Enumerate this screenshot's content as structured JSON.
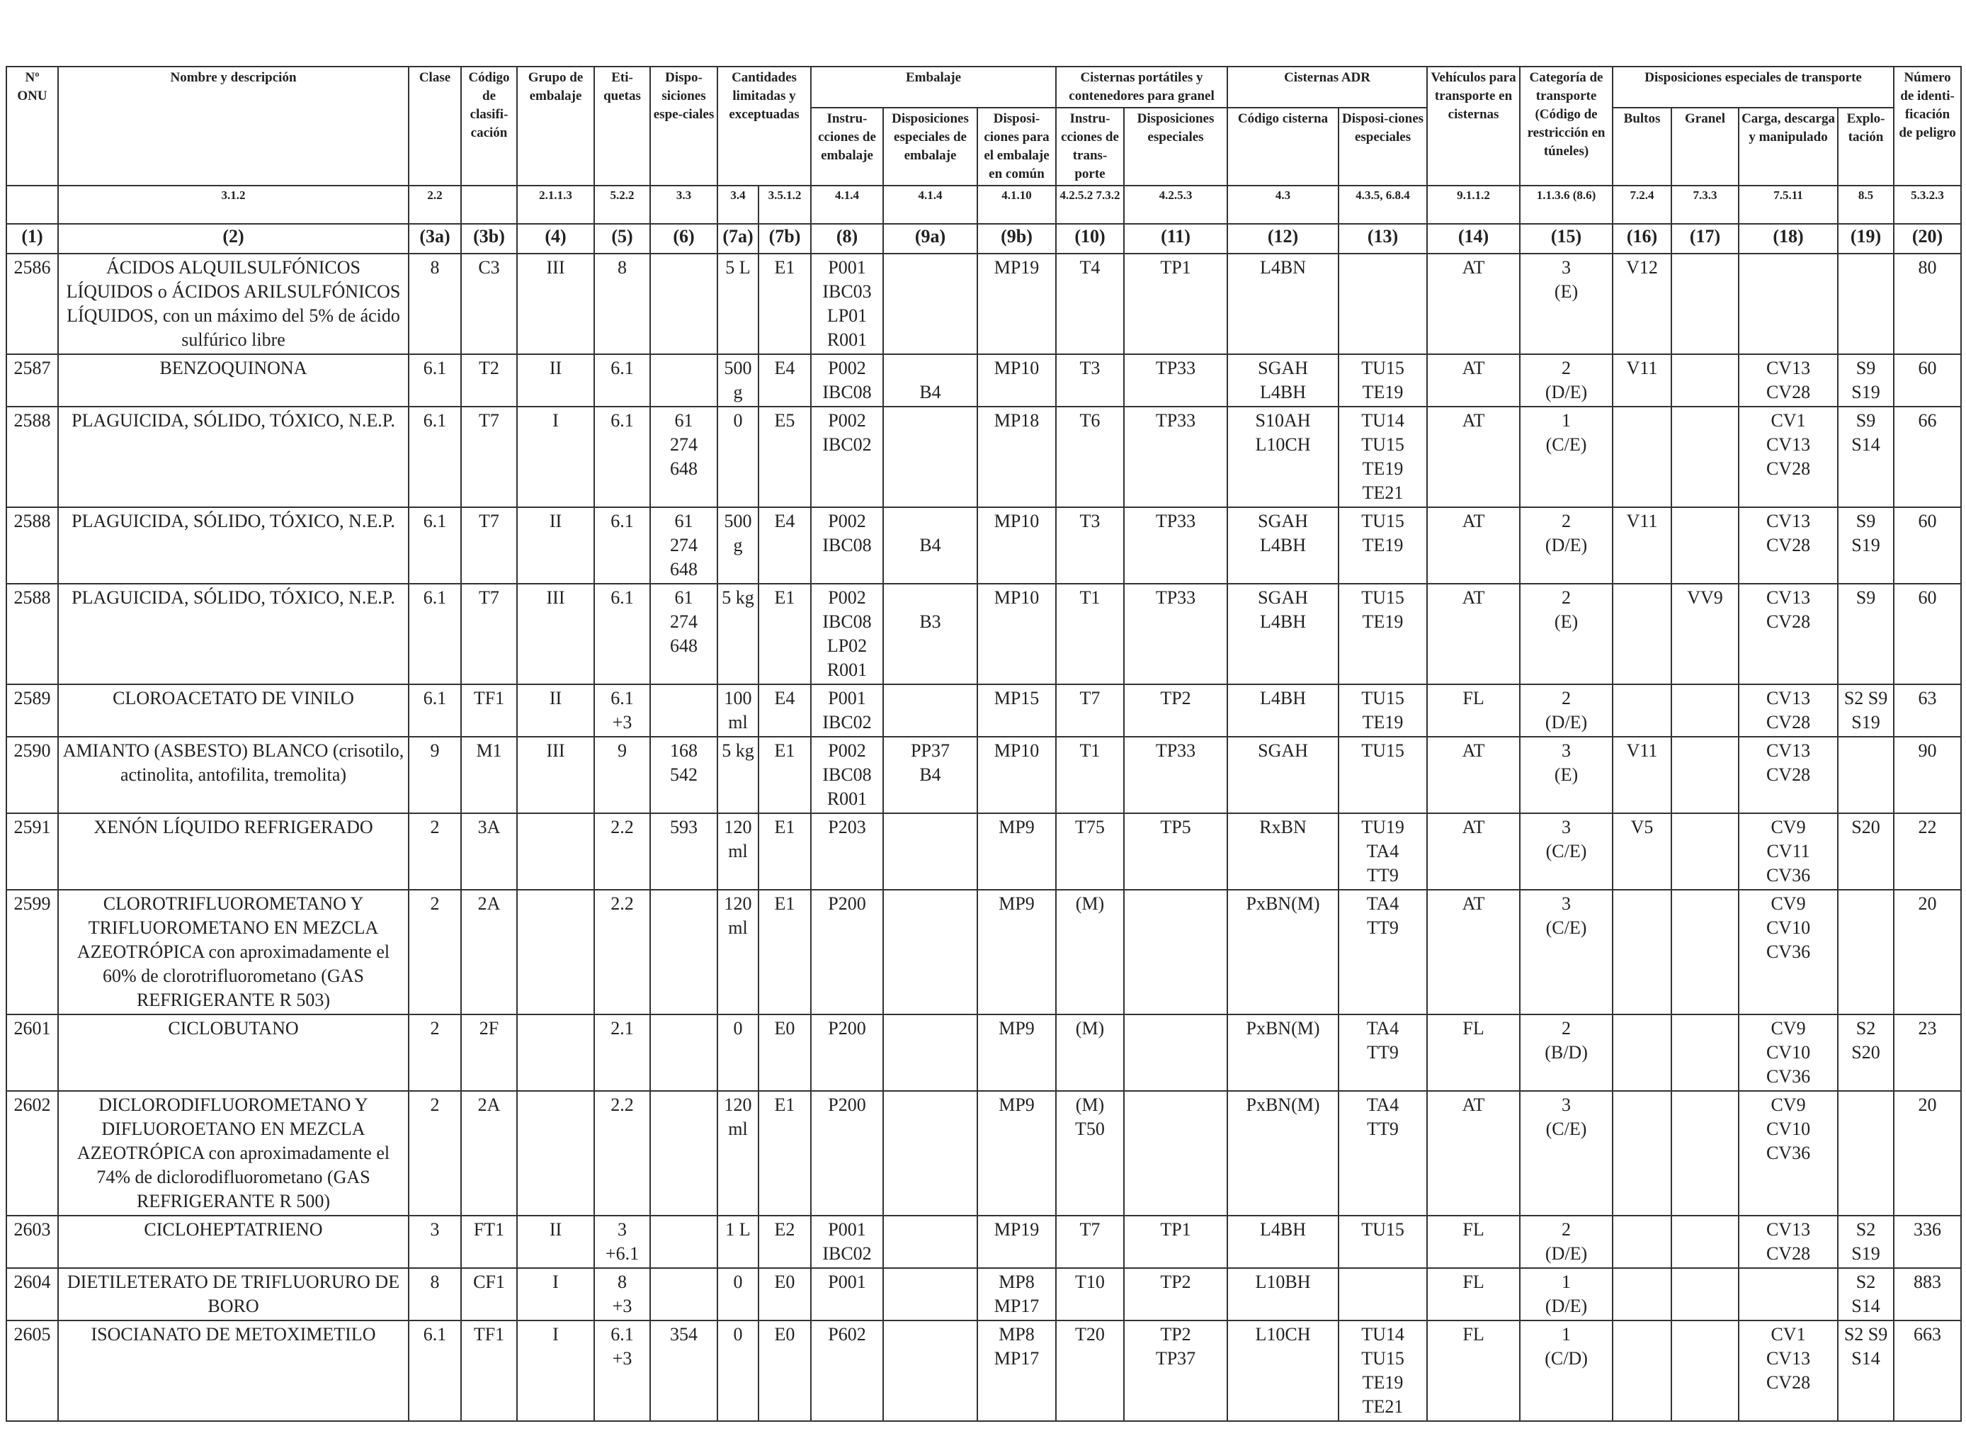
{
  "headers": {
    "un_no": "Nº ONU",
    "name": "Nombre y descripción",
    "class": "Clase",
    "class_code": "Código de clasifi-cación",
    "packing_group": "Grupo de embalaje",
    "labels": "Eti-quetas",
    "special_provisions": "Dispo-siciones espe-ciales",
    "limited_qty": "Cantidades limitadas y exceptuadas",
    "packaging": "Embalaje",
    "pack_instr": "Instru-cciones de embalaje",
    "pack_special": "Disposiciones especiales de embalaje",
    "mixed_packing": "Disposi-ciones para el embalaje en común",
    "portable_tanks": "Cisternas portátiles y contenedores para granel",
    "pt_instr": "Instru-cciones de trans-porte",
    "pt_special": "Disposiciones especiales",
    "adr_tanks": "Cisternas ADR",
    "tank_code": "Código cisterna",
    "tank_special": "Disposi-ciones especiales",
    "vehicle": "Vehículos para transporte en cisternas",
    "transport_cat": "Categoría de transporte (Código de restricción en túneles)",
    "special_transport": "Disposiciones especiales de transporte",
    "packages": "Bultos",
    "bulk": "Granel",
    "loading": "Carga, descarga y manipulado",
    "operation": "Explo-tación",
    "hazard_id": "Número de identi-ficación de peligro"
  },
  "refs": [
    "",
    "3.1.2",
    "2.2",
    "",
    "2.1.1.3",
    "5.2.2",
    "3.3",
    "3.4",
    "3.5.1.2",
    "4.1.4",
    "4.1.4",
    "4.1.10",
    "4.2.5.2 7.3.2",
    "4.2.5.3",
    "4.3",
    "4.3.5, 6.8.4",
    "9.1.1.2",
    "1.1.3.6 (8.6)",
    "7.2.4",
    "7.3.3",
    "7.5.11",
    "8.5",
    "5.3.2.3"
  ],
  "col_numbers": [
    "(1)",
    "(2)",
    "(3a)",
    "(3b)",
    "(4)",
    "(5)",
    "(6)",
    "(7a)",
    "(7b)",
    "(8)",
    "(9a)",
    "(9b)",
    "(10)",
    "(11)",
    "(12)",
    "(13)",
    "(14)",
    "(15)",
    "(16)",
    "(17)",
    "(18)",
    "(19)",
    "(20)"
  ],
  "rows": [
    [
      "2586",
      "ÁCIDOS ALQUILSULFÓNICOS LÍQUIDOS o ÁCIDOS ARILSULFÓNICOS LÍQUIDOS, con un máximo del 5% de ácido sulfúrico libre",
      "8",
      "C3",
      "III",
      "8",
      "",
      "5 L",
      "E1",
      "P001\nIBC03\nLP01\nR001",
      "",
      "MP19",
      "T4",
      "TP1",
      "L4BN",
      "",
      "AT",
      "3\n(E)",
      "V12",
      "",
      "",
      "",
      "80"
    ],
    [
      "2587",
      "BENZOQUINONA",
      "6.1",
      "T2",
      "II",
      "6.1",
      "",
      "500 g",
      "E4",
      "P002\nIBC08",
      "\nB4",
      "MP10",
      "T3",
      "TP33",
      "SGAH\nL4BH",
      "TU15\nTE19",
      "AT",
      "2\n(D/E)",
      "V11",
      "",
      "CV13\nCV28",
      "S9\nS19",
      "60"
    ],
    [
      "2588",
      "PLAGUICIDA, SÓLIDO, TÓXICO, N.E.P.",
      "6.1",
      "T7",
      "I",
      "6.1",
      "61\n274\n648",
      "0",
      "E5",
      "P002\nIBC02",
      "",
      "MP18",
      "T6",
      "TP33",
      "S10AH\nL10CH",
      "TU14\nTU15\nTE19\nTE21",
      "AT",
      "1\n(C/E)",
      "",
      "",
      "CV1\nCV13\nCV28",
      "S9\nS14",
      "66"
    ],
    [
      "2588",
      "PLAGUICIDA, SÓLIDO, TÓXICO, N.E.P.",
      "6.1",
      "T7",
      "II",
      "6.1",
      "61\n274\n648",
      "500 g",
      "E4",
      "P002\nIBC08",
      "\nB4",
      "MP10",
      "T3",
      "TP33",
      "SGAH\nL4BH",
      "TU15\nTE19",
      "AT",
      "2\n(D/E)",
      "V11",
      "",
      "CV13\nCV28",
      "S9\nS19",
      "60"
    ],
    [
      "2588",
      "PLAGUICIDA, SÓLIDO, TÓXICO, N.E.P.",
      "6.1",
      "T7",
      "III",
      "6.1",
      "61\n274\n648",
      "5 kg",
      "E1",
      "P002\nIBC08\nLP02\nR001",
      "\nB3",
      "MP10",
      "T1",
      "TP33",
      "SGAH\nL4BH",
      "TU15\nTE19",
      "AT",
      "2\n(E)",
      "",
      "VV9",
      "CV13\nCV28",
      "S9",
      "60"
    ],
    [
      "2589",
      "CLOROACETATO DE VINILO",
      "6.1",
      "TF1",
      "II",
      "6.1\n+3",
      "",
      "100 ml",
      "E4",
      "P001\nIBC02",
      "",
      "MP15",
      "T7",
      "TP2",
      "L4BH",
      "TU15\nTE19",
      "FL",
      "2\n(D/E)",
      "",
      "",
      "CV13\nCV28",
      "S2 S9\nS19",
      "63"
    ],
    [
      "2590",
      "AMIANTO (ASBESTO) BLANCO (crisotilo, actinolita, antofilita, tremolita)",
      "9",
      "M1",
      "III",
      "9",
      "168\n542",
      "5 kg",
      "E1",
      "P002\nIBC08\nR001",
      "PP37\nB4",
      "MP10",
      "T1",
      "TP33",
      "SGAH",
      "TU15",
      "AT",
      "3\n(E)",
      "V11",
      "",
      "CV13\nCV28",
      "",
      "90"
    ],
    [
      "2591",
      "XENÓN LÍQUIDO REFRIGERADO",
      "2",
      "3A",
      "",
      "2.2",
      "593",
      "120 ml",
      "E1",
      "P203",
      "",
      "MP9",
      "T75",
      "TP5",
      "RxBN",
      "TU19\nTA4\nTT9",
      "AT",
      "3\n(C/E)",
      "V5",
      "",
      "CV9\nCV11\nCV36",
      "S20",
      "22"
    ],
    [
      "2599",
      "CLOROTRIFLUOROMETANO Y TRIFLUOROMETANO EN MEZCLA AZEOTRÓPICA con aproximadamente el 60% de clorotrifluorometano (GAS REFRIGERANTE R 503)",
      "2",
      "2A",
      "",
      "2.2",
      "",
      "120 ml",
      "E1",
      "P200",
      "",
      "MP9",
      "(M)",
      "",
      "PxBN(M)",
      "TA4\nTT9",
      "AT",
      "3\n(C/E)",
      "",
      "",
      "CV9\nCV10\nCV36",
      "",
      "20"
    ],
    [
      "2601",
      "CICLOBUTANO",
      "2",
      "2F",
      "",
      "2.1",
      "",
      "0",
      "E0",
      "P200",
      "",
      "MP9",
      "(M)",
      "",
      "PxBN(M)",
      "TA4\nTT9",
      "FL",
      "2\n(B/D)",
      "",
      "",
      "CV9\nCV10\nCV36",
      "S2\nS20",
      "23"
    ],
    [
      "2602",
      "DICLORODIFLUOROMETANO Y DIFLUOROETANO EN MEZCLA AZEOTRÓPICA con aproximadamente el 74% de diclorodifluorometano (GAS REFRIGERANTE R 500)",
      "2",
      "2A",
      "",
      "2.2",
      "",
      "120 ml",
      "E1",
      "P200",
      "",
      "MP9",
      "(M)\nT50",
      "",
      "PxBN(M)",
      "TA4\nTT9",
      "AT",
      "3\n(C/E)",
      "",
      "",
      "CV9\nCV10\nCV36",
      "",
      "20"
    ],
    [
      "2603",
      "CICLOHEPTATRIENO",
      "3",
      "FT1",
      "II",
      "3\n+6.1",
      "",
      "1 L",
      "E2",
      "P001\nIBC02",
      "",
      "MP19",
      "T7",
      "TP1",
      "L4BH",
      "TU15",
      "FL",
      "2\n(D/E)",
      "",
      "",
      "CV13\nCV28",
      "S2\nS19",
      "336"
    ],
    [
      "2604",
      "DIETILETERATO DE TRIFLUORURO DE BORO",
      "8",
      "CF1",
      "I",
      "8\n+3",
      "",
      "0",
      "E0",
      "P001",
      "",
      "MP8\nMP17",
      "T10",
      "TP2",
      "L10BH",
      "",
      "FL",
      "1\n(D/E)",
      "",
      "",
      "",
      "S2\nS14",
      "883"
    ],
    [
      "2605",
      "ISOCIANATO DE METOXIMETILO",
      "6.1",
      "TF1",
      "I",
      "6.1\n+3",
      "354",
      "0",
      "E0",
      "P602",
      "",
      "MP8\nMP17",
      "T20",
      "TP2\nTP37",
      "L10CH",
      "TU14\nTU15\nTE19\nTE21",
      "FL",
      "1\n(C/D)",
      "",
      "",
      "CV1\nCV13\nCV28",
      "S2 S9\nS14",
      "663"
    ]
  ]
}
